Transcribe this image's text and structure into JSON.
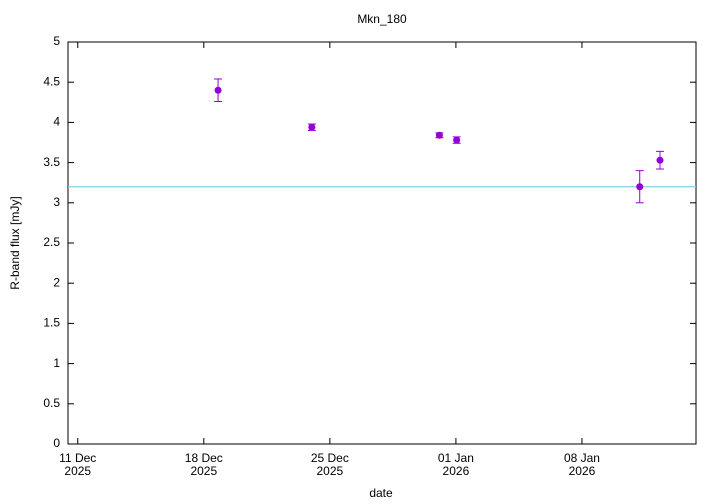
{
  "chart_data": {
    "type": "errorbar",
    "title": "Mkn_180",
    "x_label": "date",
    "y_label": "R-band flux [mJy]",
    "x": [
      "2025-12-18T19:00",
      "2025-12-24T00:00",
      "2025-12-31T02:00",
      "2026-01-01T01:00",
      "2026-01-11T05:00",
      "2026-01-12T08:00"
    ],
    "values": [
      4.4,
      3.94,
      3.84,
      3.78,
      3.2,
      3.53
    ],
    "errors": [
      0.14,
      0.04,
      0.03,
      0.04,
      0.2,
      0.11
    ],
    "color": "#9400d3",
    "reference_line": 3.2,
    "reference_color": "#87ceeb",
    "xlim": [
      "2025-12-10T11:00",
      "2026-01-14T08:00"
    ],
    "xticks": [
      {
        "value": "2025-12-11T00:00",
        "label": [
          "11 Dec",
          "2025"
        ]
      },
      {
        "value": "2025-12-18T00:00",
        "label": [
          "18 Dec",
          "2025"
        ]
      },
      {
        "value": "2025-12-25T00:00",
        "label": [
          "25 Dec",
          "2025"
        ]
      },
      {
        "value": "2026-01-01T00:00",
        "label": [
          "01 Jan",
          "2026"
        ]
      },
      {
        "value": "2026-01-08T00:00",
        "label": [
          "08 Jan",
          "2026"
        ]
      }
    ],
    "ylim": [
      0,
      5
    ],
    "yticks": [
      0,
      0.5,
      1,
      1.5,
      2,
      2.5,
      3,
      3.5,
      4,
      4.5,
      5
    ]
  }
}
